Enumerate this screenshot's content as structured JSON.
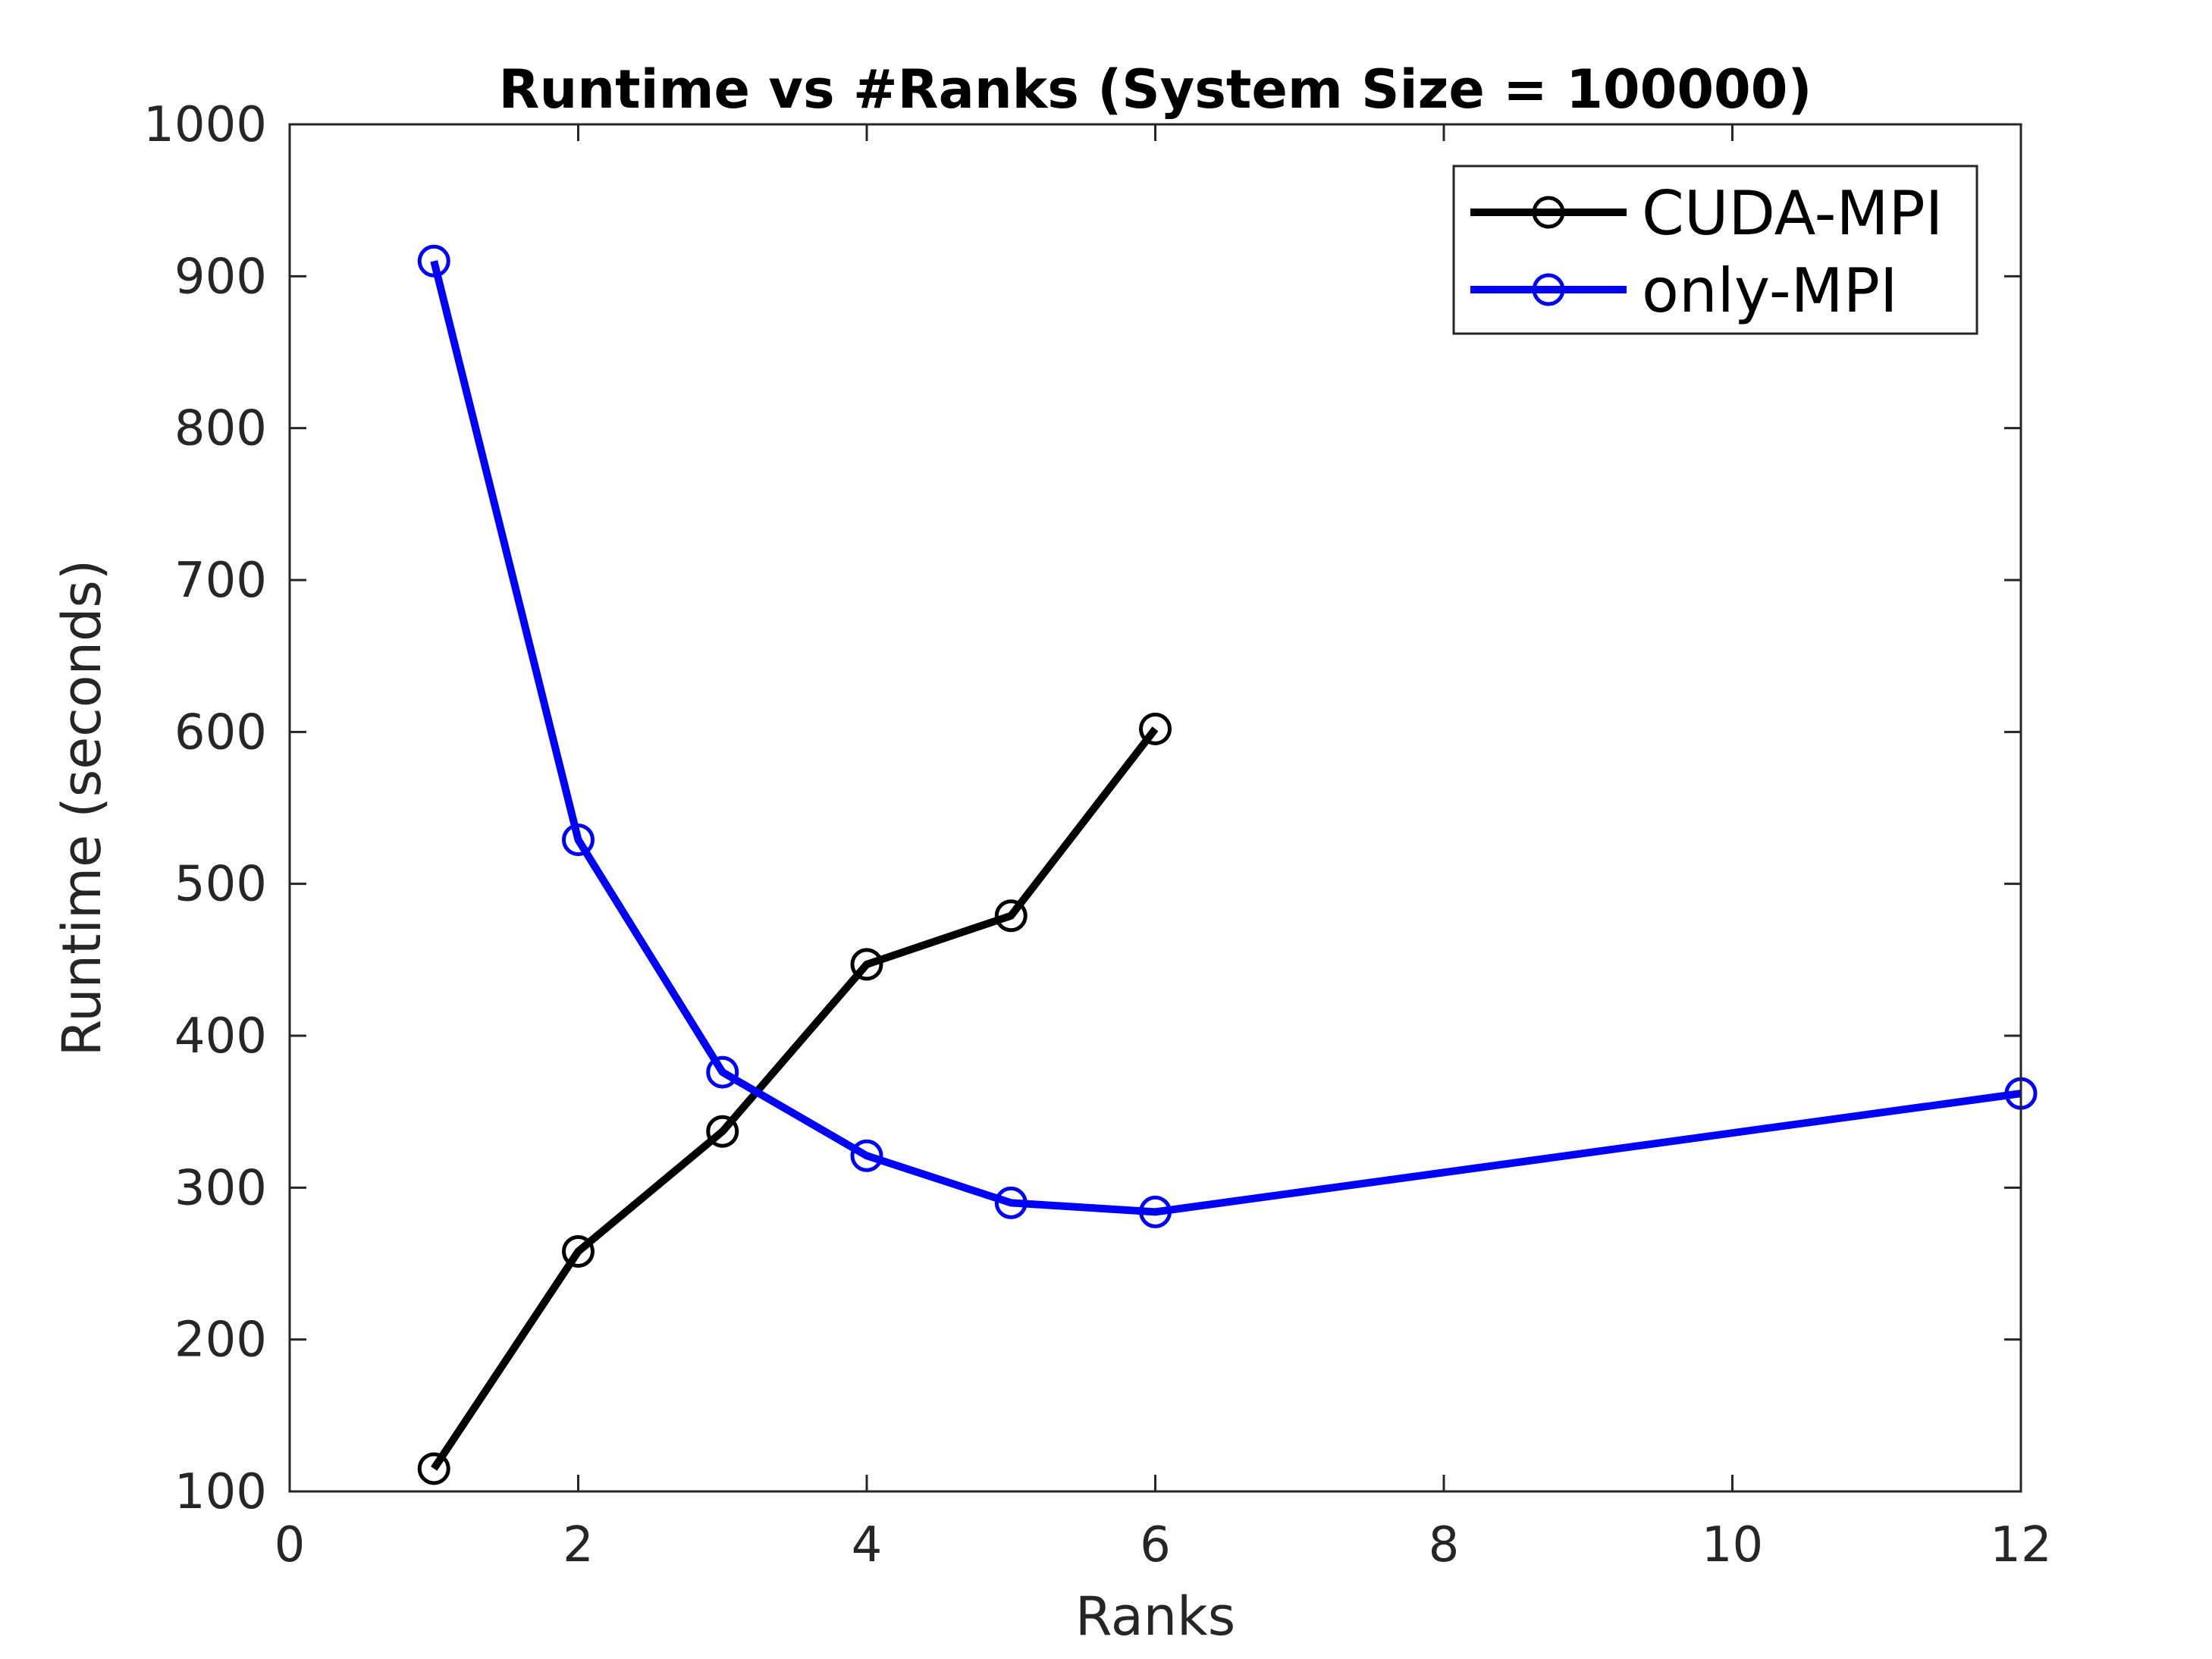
{
  "chart_data": {
    "type": "line",
    "title": "Runtime vs #Ranks (System Size = 100000)",
    "xlabel": "Ranks",
    "ylabel": "Runtime (seconds)",
    "xlim": [
      0,
      12
    ],
    "ylim": [
      100,
      1000
    ],
    "xticks": [
      0,
      2,
      4,
      6,
      8,
      10,
      12
    ],
    "yticks": [
      100,
      200,
      300,
      400,
      500,
      600,
      700,
      800,
      900,
      1000
    ],
    "grid": false,
    "legend_position": "top-right",
    "series": [
      {
        "name": "CUDA-MPI",
        "color": "#000000",
        "marker": "circle",
        "x": [
          1,
          2,
          3,
          4,
          5,
          6
        ],
        "y": [
          115,
          258,
          337,
          447,
          479,
          602
        ]
      },
      {
        "name": "only-MPI",
        "color": "#0000ff",
        "marker": "circle",
        "x": [
          1,
          2,
          3,
          4,
          5,
          6,
          12
        ],
        "y": [
          910,
          529,
          376,
          321,
          290,
          284,
          362
        ]
      }
    ]
  }
}
